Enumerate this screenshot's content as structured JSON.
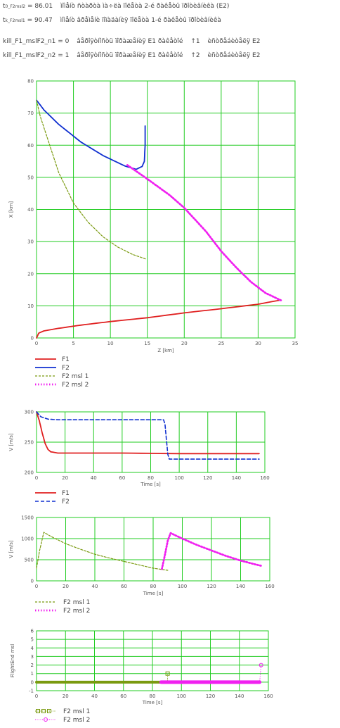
{
  "header": {
    "line1": {
      "sym": "t",
      "sub": "0_F2msl2",
      "eq": "= 86.01",
      "desc": "ìîìåíò ñòàðòà ìà÷ëà ïîëåòà 2-é ðàêåòû ïðîòèâíèêà (E2)"
    },
    "line2": {
      "sym": "t",
      "sub": "k_F2msl1",
      "eq": "= 90.47",
      "desc": "ìîìåíò âðåìåíè ïîïàäàíèÿ ïîëåòà 1-é ðàêåòû ïðîòèâíèêà"
    },
    "line3": {
      "name": "kill_F1_mslF2_n1",
      "eq": "= 0",
      "desc": "âåðîÿòíîñòü ïîðàæåíèÿ E1 ðàêåòîé",
      "num": "↑1",
      "tail": "èñòðåáèòåëÿ E2"
    },
    "line4": {
      "name": "kill_F1_mslF2_n2",
      "eq": "= 1",
      "desc": "âåðîÿòíîñòü ïîðàæåíèÿ E1 ðàêåòîé",
      "num": "↑2",
      "tail": "èñòðåáèòåëÿ E2"
    }
  },
  "colors": {
    "F1": "#e02020",
    "F2": "#1030d0",
    "msl1": "#7a9a10",
    "msl2": "#f020f0",
    "grid": "#22cc22"
  },
  "chart_data": [
    {
      "type": "line",
      "xlabel": "Z [km]",
      "ylabel": "X [km]",
      "xlim": [
        0,
        35
      ],
      "ylim": [
        0,
        80
      ],
      "xticks": [
        0,
        5,
        10,
        15,
        20,
        25,
        30,
        35
      ],
      "yticks": [
        0,
        10,
        20,
        30,
        40,
        50,
        60,
        70,
        80
      ],
      "legend": [
        "F1",
        "F2",
        "F2 msl 1",
        "F2 msl 2"
      ],
      "series": [
        {
          "name": "F1",
          "style": "solid-red",
          "points": [
            [
              0,
              0
            ],
            [
              0.3,
              1.5
            ],
            [
              1,
              2.2
            ],
            [
              3,
              3
            ],
            [
              6,
              4
            ],
            [
              10,
              5.1
            ],
            [
              15,
              6.3
            ],
            [
              20,
              7.8
            ],
            [
              25,
              9.1
            ],
            [
              30,
              10.5
            ],
            [
              33,
              11.8
            ]
          ]
        },
        {
          "name": "F2",
          "style": "solid-blue",
          "points": [
            [
              0,
              74
            ],
            [
              1,
              71
            ],
            [
              3,
              66.5
            ],
            [
              6,
              61
            ],
            [
              9,
              56.8
            ],
            [
              12,
              53.5
            ],
            [
              13.5,
              52.5
            ],
            [
              14.3,
              53.4
            ],
            [
              14.6,
              55
            ],
            [
              14.7,
              60
            ],
            [
              14.7,
              66
            ]
          ]
        },
        {
          "name": "F2 msl 1",
          "style": "dash-green",
          "points": [
            [
              0,
              74
            ],
            [
              0.5,
              69
            ],
            [
              1.5,
              62
            ],
            [
              3,
              51.5
            ],
            [
              5,
              42
            ],
            [
              7,
              36
            ],
            [
              9,
              31.5
            ],
            [
              11,
              28.3
            ],
            [
              13,
              26
            ],
            [
              14.9,
              24.5
            ]
          ]
        },
        {
          "name": "F2 msl 2",
          "style": "dots-magenta",
          "points": [
            [
              12.3,
              53.8
            ],
            [
              15,
              49.5
            ],
            [
              18,
              44.5
            ],
            [
              20,
              40.5
            ],
            [
              23,
              33
            ],
            [
              25,
              27
            ],
            [
              27,
              22
            ],
            [
              29,
              17.5
            ],
            [
              31,
              14
            ],
            [
              33.1,
              11.7
            ]
          ]
        }
      ]
    },
    {
      "type": "line",
      "xlabel": "Time [s]",
      "ylabel": "V [m/s]",
      "xlim": [
        0,
        160
      ],
      "ylim": [
        200,
        300
      ],
      "xticks": [
        0,
        20,
        40,
        60,
        80,
        100,
        120,
        140,
        160
      ],
      "yticks": [
        200,
        250,
        300
      ],
      "legend": [
        "F1",
        "F2"
      ],
      "series": [
        {
          "name": "F1",
          "style": "solid-red",
          "points": [
            [
              0,
              300
            ],
            [
              2,
              285
            ],
            [
              4,
              265
            ],
            [
              6,
              248
            ],
            [
              8,
              238
            ],
            [
              10,
              234
            ],
            [
              15,
              232
            ],
            [
              20,
              232
            ],
            [
              60,
              232
            ],
            [
              100,
              231
            ],
            [
              140,
              231
            ],
            [
              156,
              231
            ]
          ]
        },
        {
          "name": "F2",
          "style": "dash-blue",
          "points": [
            [
              0,
              300
            ],
            [
              3,
              292
            ],
            [
              8,
              288
            ],
            [
              15,
              287
            ],
            [
              60,
              287
            ],
            [
              89,
              287
            ],
            [
              90,
              280
            ],
            [
              91,
              255
            ],
            [
              92,
              230
            ],
            [
              93,
              222
            ],
            [
              100,
              222
            ],
            [
              156,
              222
            ]
          ]
        }
      ]
    },
    {
      "type": "line",
      "xlabel": "Time [s]",
      "ylabel": "V [m/s]",
      "xlim": [
        0,
        160
      ],
      "ylim": [
        0,
        1500
      ],
      "xticks": [
        0,
        20,
        40,
        60,
        80,
        100,
        120,
        140,
        160
      ],
      "yticks": [
        0,
        500,
        1000,
        1500
      ],
      "legend": [
        "F2 msl 1",
        "F2 msl 2"
      ],
      "series": [
        {
          "name": "F2 msl 1",
          "style": "dash-green",
          "points": [
            [
              0,
              300
            ],
            [
              2,
              700
            ],
            [
              5,
              1150
            ],
            [
              10,
              1050
            ],
            [
              20,
              880
            ],
            [
              30,
              750
            ],
            [
              40,
              630
            ],
            [
              50,
              540
            ],
            [
              60,
              460
            ],
            [
              70,
              380
            ],
            [
              80,
              300
            ],
            [
              90,
              250
            ]
          ]
        },
        {
          "name": "F2 msl 2",
          "style": "dots-magenta",
          "points": [
            [
              86,
              280
            ],
            [
              88,
              600
            ],
            [
              90,
              950
            ],
            [
              92,
              1130
            ],
            [
              100,
              1000
            ],
            [
              110,
              850
            ],
            [
              120,
              720
            ],
            [
              130,
              590
            ],
            [
              140,
              480
            ],
            [
              150,
              390
            ],
            [
              155,
              350
            ]
          ]
        }
      ]
    },
    {
      "type": "line",
      "xlabel": "Time [s]",
      "ylabel": "FlightEnd msl",
      "xlim": [
        0,
        160
      ],
      "ylim": [
        -1,
        6
      ],
      "xticks": [
        0,
        20,
        40,
        60,
        80,
        100,
        120,
        140,
        160
      ],
      "yticks": [
        -1,
        0,
        1,
        2,
        3,
        4,
        5,
        6
      ],
      "legend": [
        "F2 msl 1",
        "F2 msl 2"
      ],
      "series": [
        {
          "name": "F2 msl 1",
          "style": "boxes-green",
          "points": [
            [
              0,
              0
            ],
            [
              90.4,
              0
            ],
            [
              90.47,
              1
            ]
          ]
        },
        {
          "name": "F2 msl 2",
          "style": "circles-magenta",
          "points": [
            [
              86,
              0
            ],
            [
              154,
              0
            ],
            [
              155,
              2
            ]
          ]
        }
      ]
    }
  ]
}
